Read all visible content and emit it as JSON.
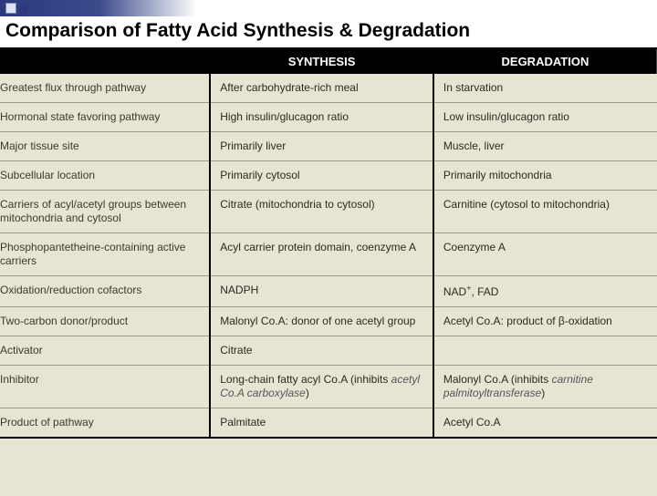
{
  "title": "Comparison of Fatty Acid Synthesis & Degradation",
  "columns": {
    "c0": "",
    "c1": "SYNTHESIS",
    "c2": "DEGRADATION"
  },
  "rows": [
    {
      "label": "Greatest flux through pathway",
      "synth": "After carbohydrate-rich meal",
      "degr": "In starvation"
    },
    {
      "label": "Hormonal state favoring pathway",
      "synth": "High insulin/glucagon ratio",
      "degr": "Low insulin/glucagon ratio"
    },
    {
      "label": "Major tissue site",
      "synth": "Primarily liver",
      "degr": "Muscle, liver"
    },
    {
      "label": "Subcellular location",
      "synth": "Primarily cytosol",
      "degr": "Primarily mitochondria"
    },
    {
      "label": "Carriers of acyl/acetyl groups between mitochondria and cytosol",
      "synth": "Citrate (mitochondria to cytosol)",
      "degr": "Carnitine (cytosol to mitochondria)"
    },
    {
      "label": "Phosphopantetheine-containing active carriers",
      "synth": "Acyl carrier protein domain, coenzyme A",
      "degr": "Coenzyme A"
    },
    {
      "label": "Oxidation/reduction cofactors",
      "synth": "NADPH",
      "degr": "NAD+, FAD"
    },
    {
      "label": "Two-carbon donor/product",
      "synth": "Malonyl Co.A: donor of one acetyl group",
      "degr": "Acetyl Co.A: product of β-oxidation"
    },
    {
      "label": "Activator",
      "synth": "Citrate",
      "degr": ""
    },
    {
      "label": "Inhibitor",
      "synth": "Long-chain fatty acyl Co.A (inhibits acetyl Co.A carboxylase)",
      "degr": "Malonyl Co.A (inhibits carnitine palmitoyltransferase)"
    },
    {
      "label": "Product of pathway",
      "synth": "Palmitate",
      "degr": "Acetyl Co.A"
    }
  ],
  "colors": {
    "header_bg": "#000000",
    "header_fg": "#ffffff",
    "paper_bg": "#e8e4d4",
    "rule": "#a09a85",
    "accent": "#2a3a7a"
  }
}
